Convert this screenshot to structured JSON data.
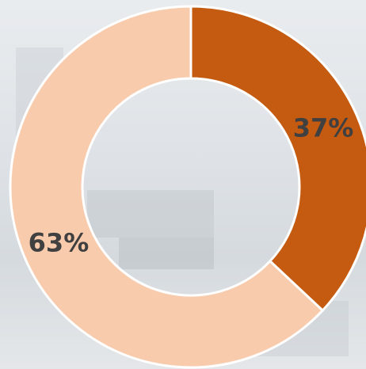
{
  "chart_data": {
    "type": "donut",
    "values": [
      37,
      63
    ],
    "value_labels": [
      "37%",
      "63%"
    ],
    "colors": [
      "#c55a11",
      "#f8cbad"
    ]
  }
}
